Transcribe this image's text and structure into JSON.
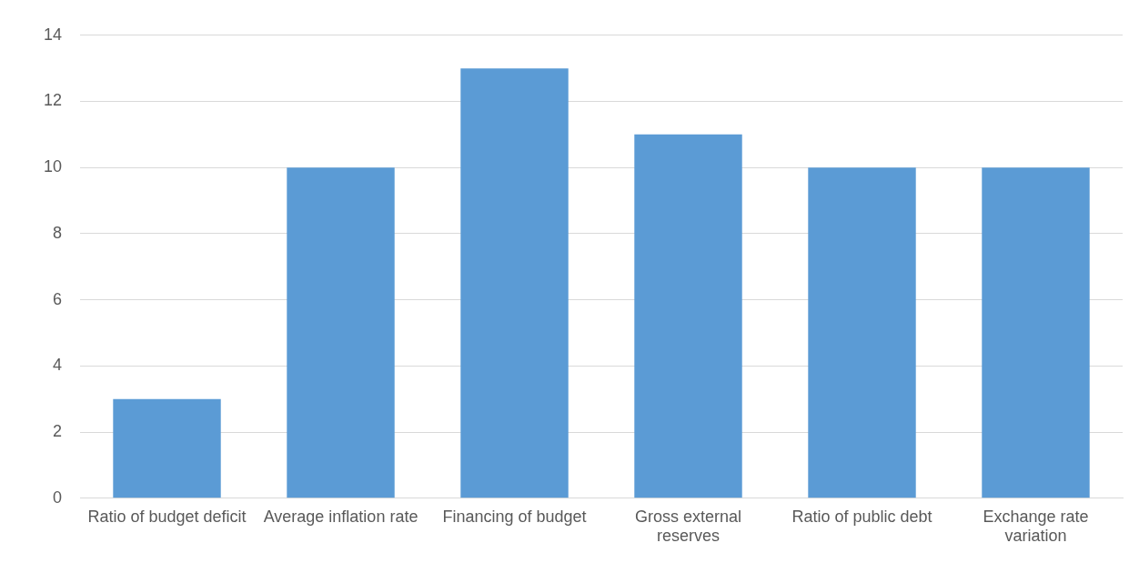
{
  "chart_data": {
    "type": "bar",
    "categories": [
      "Ratio of budget deficit",
      "Average inflation rate",
      "Financing of budget",
      "Gross external reserves",
      "Ratio of public debt",
      "Exchange rate variation"
    ],
    "values": [
      3,
      10,
      13,
      11,
      10,
      10
    ],
    "color": "#5b9bd5",
    "ylim": [
      0,
      14
    ],
    "yticks": [
      0,
      2,
      4,
      6,
      8,
      10,
      12,
      14
    ],
    "grid": "y",
    "legend": false
  }
}
